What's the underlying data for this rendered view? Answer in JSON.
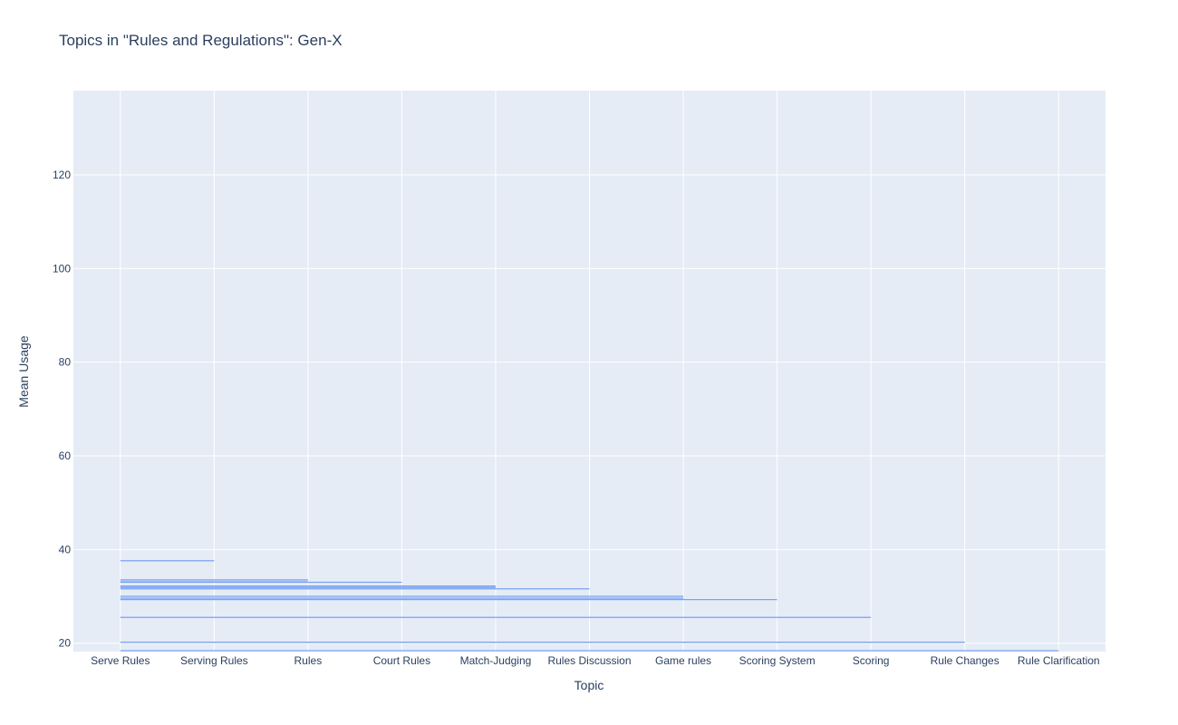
{
  "chart_data": {
    "type": "line",
    "title": "Topics in \"Rules and Regulations\": Gen-X",
    "xlabel": "Topic",
    "ylabel": "Mean Usage",
    "categories": [
      "Serve Rules",
      "Serving Rules",
      "Rules",
      "Court Rules",
      "Match-Judging",
      "Rules Discussion",
      "Game rules",
      "Scoring System",
      "Scoring",
      "Rule Changes",
      "Rule Clarification"
    ],
    "y_ticks": [
      20,
      40,
      60,
      80,
      100,
      120
    ],
    "ylim": [
      18.2,
      138
    ],
    "grid": true,
    "line_color": "#7aa3f0",
    "plot_bg": "#e5ecf6",
    "segments": [
      {
        "end": "Serving Rules",
        "value": 37.6
      },
      {
        "end": "Rules",
        "value": 33.5
      },
      {
        "end": "Rules",
        "value": 33.1
      },
      {
        "end": "Court Rules",
        "value": 33.0
      },
      {
        "end": "Match-Judging",
        "value": 32.2
      },
      {
        "end": "Match-Judging",
        "value": 31.9
      },
      {
        "end": "Rules Discussion",
        "value": 31.6
      },
      {
        "end": "Game rules",
        "value": 30.0
      },
      {
        "end": "Game rules",
        "value": 29.6
      },
      {
        "end": "Scoring System",
        "value": 29.3
      },
      {
        "end": "Scoring",
        "value": 25.5
      },
      {
        "end": "Rule Changes",
        "value": 20.2
      },
      {
        "end": "Rule Clarification",
        "value": 18.4
      }
    ]
  }
}
